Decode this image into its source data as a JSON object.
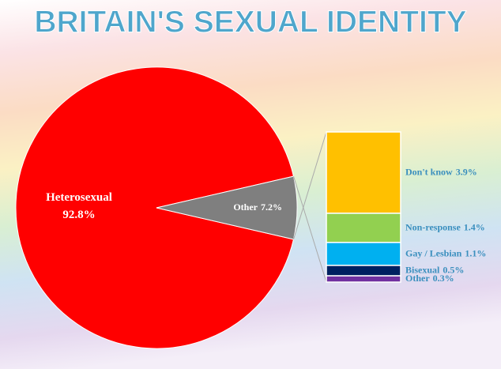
{
  "chart_data": [
    {
      "type": "pie",
      "title": "BRITAIN'S SEXUAL IDENTITY",
      "categories": [
        "Heterosexual",
        "Other"
      ],
      "values": [
        92.8,
        7.2
      ],
      "value_labels": [
        "92.8%",
        "7.2%"
      ],
      "colors": [
        "#ff0000",
        "#7f7f7f"
      ]
    },
    {
      "type": "bar",
      "categories": [
        "Don't know",
        "Non-response",
        "Gay / Lesbian",
        "Bisexual",
        "Other"
      ],
      "values": [
        3.9,
        1.4,
        1.1,
        0.5,
        0.3
      ],
      "value_labels": [
        "3.9%",
        "1.4%",
        "1.1%",
        "0.5%",
        "0.3%"
      ],
      "colors": [
        "#ffc000",
        "#92d050",
        "#00b0f0",
        "#002060",
        "#7030a0"
      ]
    }
  ]
}
